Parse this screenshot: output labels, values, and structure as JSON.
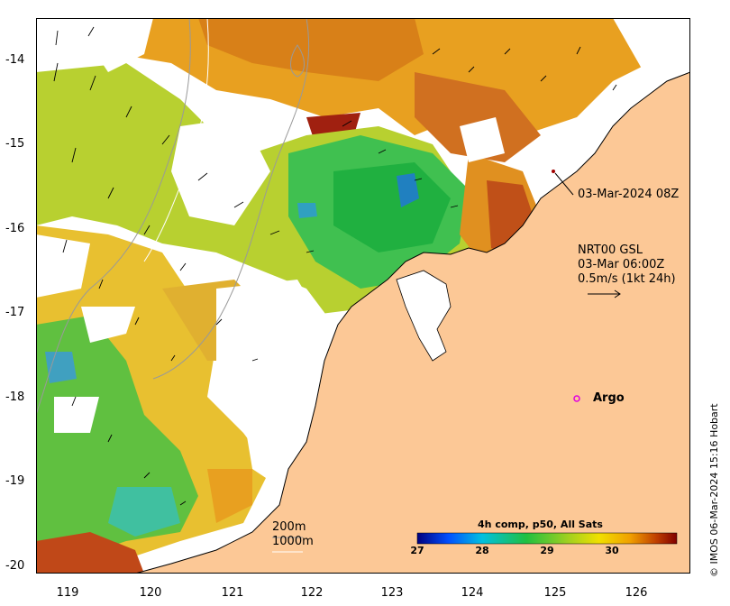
{
  "map": {
    "lat_ticks": [
      "-14",
      "-15",
      "-16",
      "-17",
      "-18",
      "-19",
      "-20"
    ],
    "lon_ticks": [
      "119",
      "120",
      "121",
      "122",
      "123",
      "124",
      "125",
      "126"
    ],
    "lat_range": [
      -20.15,
      -13.5
    ],
    "lon_range": [
      118.6,
      126.7
    ]
  },
  "annotations": {
    "track_time": "03-Mar-2024 08Z",
    "vector_line1": "NRT00 GSL",
    "vector_line2": "03-Mar 06:00Z",
    "vector_line3": "0.5m/s (1kt 24h)",
    "argo": "Argo",
    "depth_200": "200m",
    "depth_1000": "1000m"
  },
  "colorbar": {
    "title": "4h comp, p50, All Sats",
    "ticks": [
      "27",
      "28",
      "29",
      "30"
    ],
    "range": [
      27,
      31
    ]
  },
  "credit": "© IMOS 06-Mar-2024 15:16 Hobart",
  "colors": {
    "land": "#fcc896",
    "argo": "#e000e0",
    "warm": "#d2691e",
    "mid": "#f0c000",
    "cool": "#3cc040",
    "cold": "#30b0c0"
  }
}
